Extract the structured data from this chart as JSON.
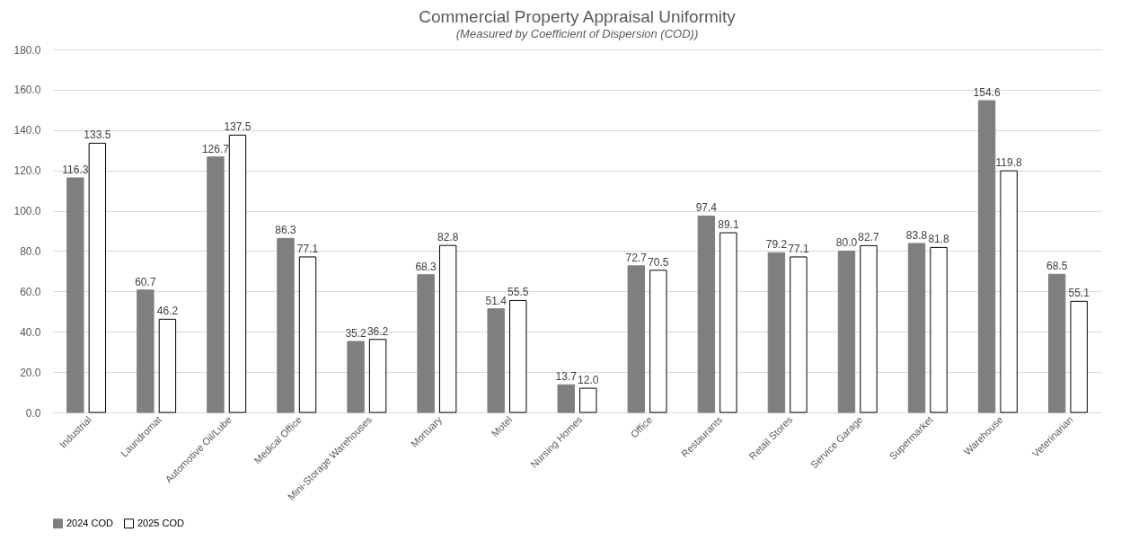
{
  "chart_data": {
    "type": "bar",
    "title": "Commercial Property Appraisal Uniformity",
    "subtitle": "(Measured by Coefficient of Dispersion (COD))",
    "categories": [
      "Industrial",
      "Laundromat",
      "Automotive Oil/Lube",
      "Medical Office",
      "Mini-Storage Warehouses",
      "Mortuary",
      "Motel",
      "Nursing Homes",
      "Office",
      "Restaurants",
      "Retail Stores",
      "Service Garage",
      "Supermarket",
      "Warehouse",
      "Veterinarian"
    ],
    "series": [
      {
        "name": "2024 COD",
        "color": "#7f7f7f",
        "values": [
          116.3,
          60.7,
          126.7,
          86.3,
          35.2,
          68.3,
          51.4,
          13.7,
          72.7,
          97.4,
          79.2,
          80.0,
          83.8,
          154.6,
          68.5
        ],
        "value_labels": [
          "116.3",
          "60.7",
          "126.7",
          "86.3",
          "35.2",
          "68.3",
          "51.4",
          "13.7",
          "72.7",
          "97.4",
          "79.2",
          "80.0",
          "83.8",
          "154.6",
          "68.5"
        ]
      },
      {
        "name": "2025 COD",
        "color": "#ffffff",
        "values": [
          133.5,
          46.2,
          137.5,
          77.1,
          36.2,
          82.8,
          55.5,
          12.0,
          70.5,
          89.1,
          77.1,
          82.7,
          81.8,
          119.8,
          55.1
        ],
        "value_labels": [
          "133.5",
          "46.2",
          "137.5",
          "77.1",
          "36.2",
          "82.8",
          "55.5",
          "12.0",
          "70.5",
          "89.1",
          "77.1",
          "82.7",
          "81.8",
          "119.8",
          "55.1"
        ]
      }
    ],
    "ylim": [
      0,
      180
    ],
    "yticks": [
      {
        "value": 0,
        "label": "0.0"
      },
      {
        "value": 20,
        "label": "20.0"
      },
      {
        "value": 40,
        "label": "40.0"
      },
      {
        "value": 60,
        "label": "60.0"
      },
      {
        "value": 80,
        "label": "80.0"
      },
      {
        "value": 100,
        "label": "100.0"
      },
      {
        "value": 120,
        "label": "120.0"
      },
      {
        "value": 140,
        "label": "140.0"
      },
      {
        "value": 160,
        "label": "160.0"
      },
      {
        "value": 180,
        "label": "180.0"
      }
    ],
    "grid": "y",
    "legend": "bottom"
  }
}
